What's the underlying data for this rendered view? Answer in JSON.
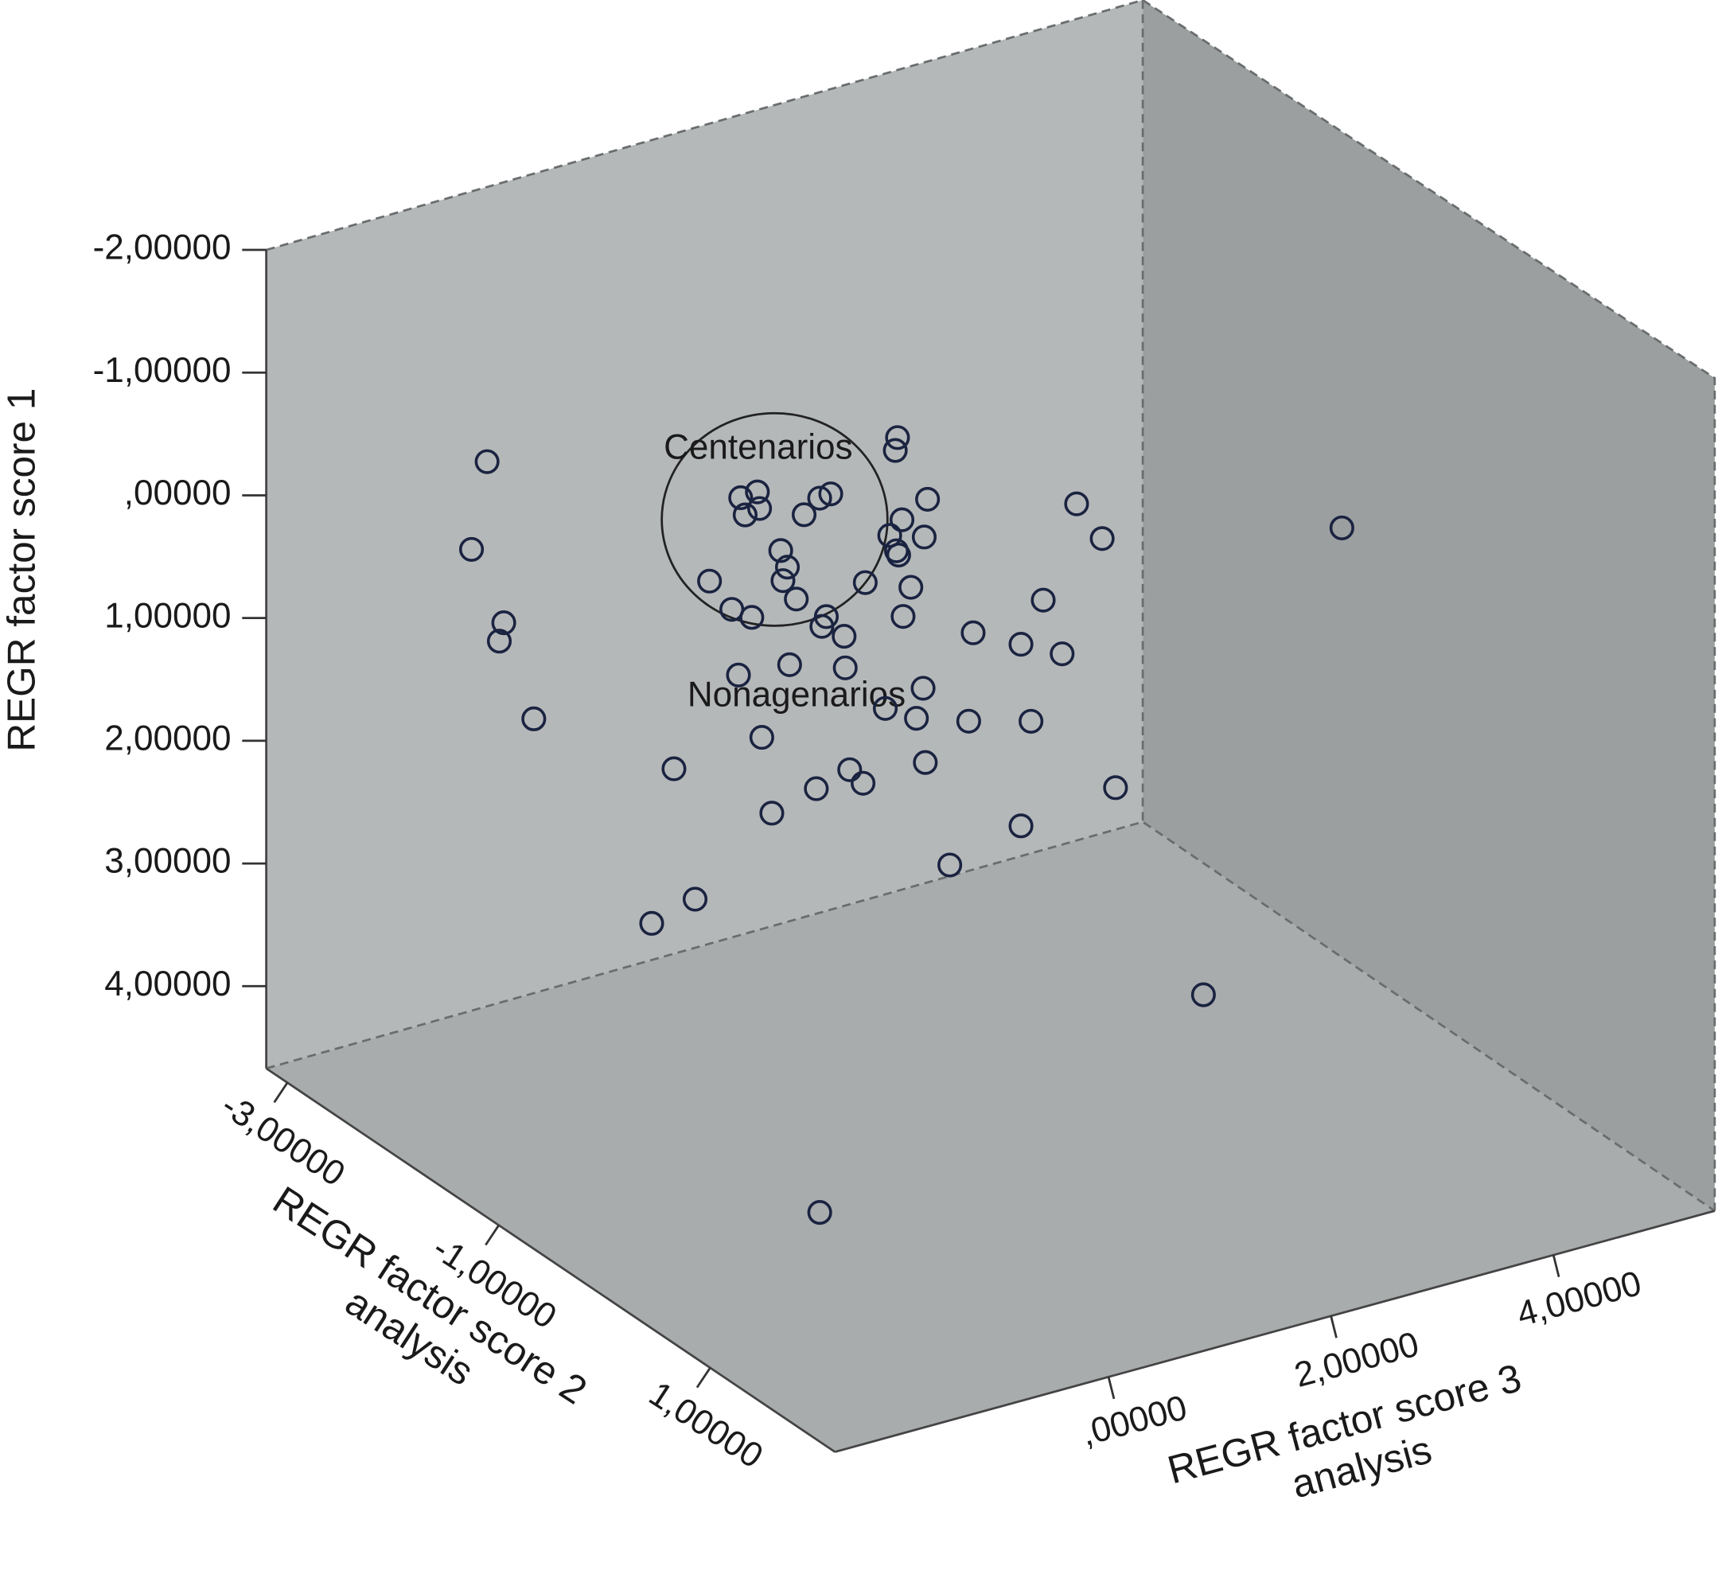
{
  "chart_data": {
    "type": "scatter3d",
    "y_label": "REGR factor score 1",
    "z_label": [
      "REGR factor score 2",
      "analysis"
    ],
    "x_label": [
      "REGR factor score 3",
      "analysis"
    ],
    "annotations": [
      {
        "text": "Centenarios"
      },
      {
        "text": "Nonagenarios"
      }
    ],
    "xlim": [
      -2.46,
      5.45
    ],
    "ylim": [
      -2,
      4.67
    ],
    "zlim": [
      -3.2,
      2.18
    ],
    "y_inverted": true,
    "xticks": [
      {
        "value": 0,
        "label": ",00000"
      },
      {
        "value": 2,
        "label": "2,00000"
      },
      {
        "value": 4,
        "label": "4,00000"
      }
    ],
    "yticks": [
      {
        "value": -2,
        "label": "-2,00000"
      },
      {
        "value": -1,
        "label": "-1,00000"
      },
      {
        "value": 0,
        "label": ",00000"
      },
      {
        "value": 1,
        "label": "1,00000"
      },
      {
        "value": 2,
        "label": "2,00000"
      },
      {
        "value": 3,
        "label": "3,00000"
      },
      {
        "value": 4,
        "label": "4,00000"
      }
    ],
    "zticks": [
      {
        "value": -3,
        "label": "-3,00000"
      },
      {
        "value": -1,
        "label": "-1,00000"
      },
      {
        "value": 1,
        "label": "1,00000"
      }
    ],
    "series": [
      {
        "color": "#1a2340",
        "x": [
          -2.09,
          -2.23,
          -1.94,
          -1.98,
          -1.67,
          1.6,
          1.58,
          0.19,
          0.34,
          0.23,
          0.36,
          0.9,
          1.0,
          0.76,
          1.87,
          1.64,
          1.53,
          1.84,
          1.59,
          1.61,
          0.55,
          0.61,
          0.57,
          -0.09,
          0.69,
          1.31,
          1.72,
          0.11,
          0.29,
          0.96,
          0.92,
          1.65,
          1.12,
          3.21,
          3.44,
          2.91,
          2.28,
          2.71,
          3.08,
          0.17,
          0.63,
          1.13,
          1.83,
          1.49,
          1.77,
          0.38,
          2.24,
          2.8,
          -0.41,
          1.17,
          1.29,
          1.85,
          0.87,
          3.56,
          0.47,
          2.71,
          2.07,
          -0.22,
          -0.61,
          5.12,
          2.45,
          -1.95
        ],
        "y": [
          -1.17,
          -0.49,
          0.18,
          0.32,
          1.03,
          -0.45,
          -0.35,
          -0.31,
          -0.32,
          -0.16,
          -0.18,
          -0.13,
          -0.14,
          -0.03,
          0.12,
          0.23,
          0.33,
          0.42,
          0.47,
          0.51,
          0.21,
          0.36,
          0.46,
          0.3,
          0.64,
          0.66,
          0.8,
          0.58,
          0.69,
          0.85,
          0.92,
          1.02,
          1.05,
          0.49,
          0.83,
          1.2,
          1.31,
          1.51,
          1.68,
          1.13,
          1.16,
          1.31,
          1.65,
          1.73,
          1.88,
          1.69,
          2.02,
          2.16,
          1.75,
          2.15,
          2.29,
          2.26,
          2.23,
          2.89,
          2.33,
          2.99,
          3.15,
          2.86,
          2.96,
          0.87,
          3.14,
          3.24
        ],
        "z": [
          -1.5,
          -1.5,
          -1.5,
          -1.5,
          -1.5,
          -1.5,
          -1.5,
          -1.5,
          -1.5,
          -1.5,
          -1.5,
          -1.5,
          -1.5,
          -1.5,
          -1.5,
          -1.5,
          -1.5,
          -1.5,
          -1.5,
          -1.5,
          -1.5,
          -1.5,
          -1.5,
          -1.5,
          -1.5,
          -1.5,
          -1.5,
          -1.5,
          -1.5,
          -1.5,
          -1.5,
          -1.5,
          -1.5,
          -1.5,
          -1.5,
          -1.5,
          -1.5,
          -1.5,
          -1.5,
          -1.5,
          -1.5,
          -1.5,
          -1.5,
          -1.5,
          -1.5,
          -1.5,
          -1.5,
          -1.5,
          -1.5,
          -1.5,
          -1.5,
          -1.5,
          -1.5,
          -1.5,
          -1.5,
          -1.5,
          -1.5,
          -1.5,
          -1.5,
          -1.0,
          0.5,
          1.5
        ]
      }
    ]
  }
}
